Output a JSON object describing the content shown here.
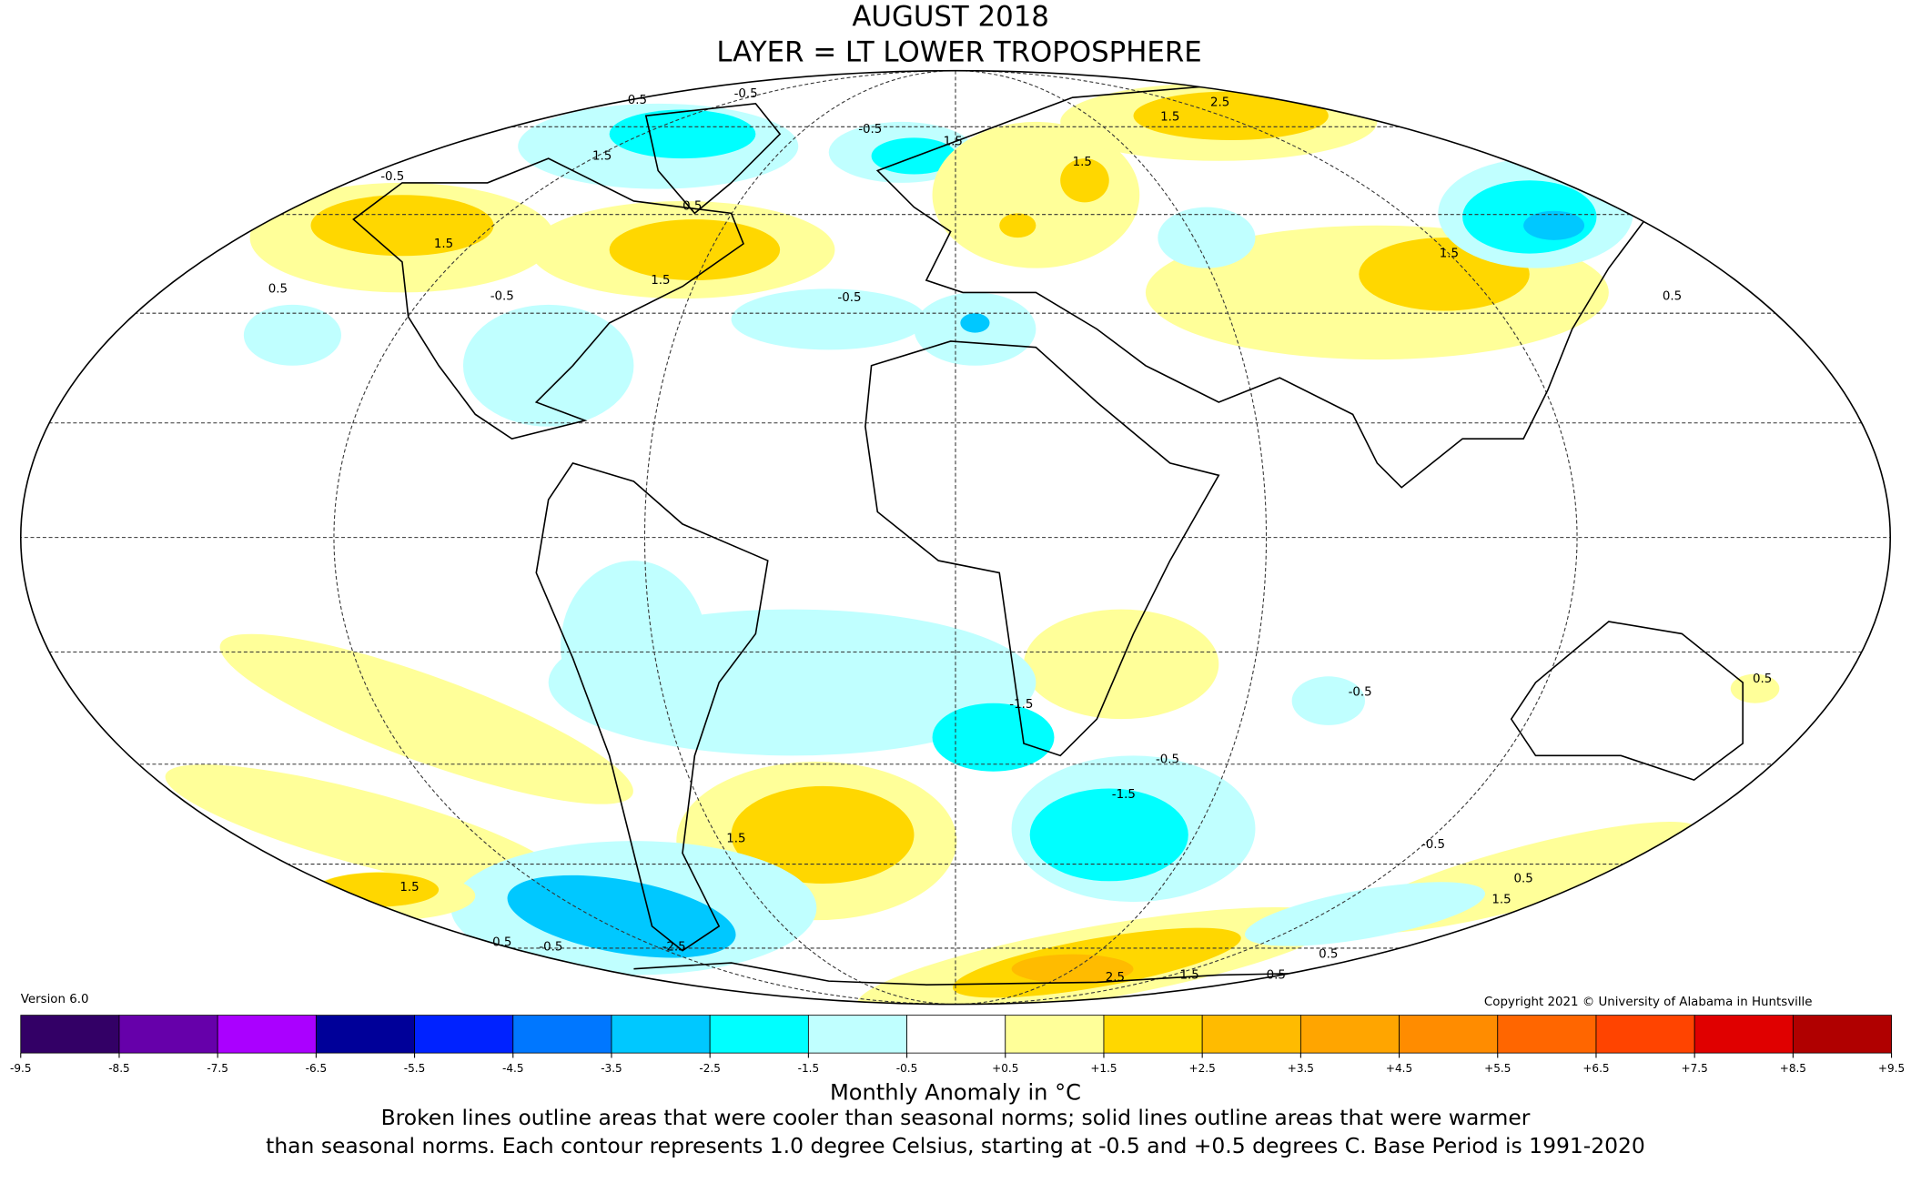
{
  "header": {
    "title": "AUGUST 2018",
    "subtitle": "LAYER = LT LOWER TROPOSPHERE"
  },
  "map": {
    "contour_labels": [
      0.5,
      -0.5,
      1.5,
      -0.5,
      1.5,
      -0.5,
      1.5,
      0.5,
      1.5,
      0.5,
      -0.5,
      -0.5,
      2.5,
      1.5,
      1.5,
      1.5,
      0.5,
      -1.5,
      -0.5,
      -1.5,
      1.5,
      -0.5,
      0.5,
      1.5,
      0.5,
      -0.5,
      -2.5,
      2.5,
      1.5,
      0.5,
      0.5,
      -0.5,
      0.5,
      1.5
    ]
  },
  "colorbar": {
    "label": "Monthly Anomaly in °C",
    "ticks": [
      -9.5,
      -8.5,
      -7.5,
      -6.5,
      -5.5,
      -4.5,
      -3.5,
      -2.5,
      -1.5,
      -0.5,
      {
        "value": 0.5,
        "label": "+0.5"
      },
      {
        "value": 1.5,
        "label": "+1.5"
      },
      {
        "value": 2.5,
        "label": "+2.5"
      },
      {
        "value": 3.5,
        "label": "+3.5"
      },
      {
        "value": 4.5,
        "label": "+4.5"
      },
      {
        "value": 5.5,
        "label": "+5.5"
      },
      {
        "value": 6.5,
        "label": "+6.5"
      },
      {
        "value": 7.5,
        "label": "+7.5"
      },
      {
        "value": 8.5,
        "label": "+8.5"
      },
      {
        "value": 9.5,
        "label": "+9.5"
      }
    ],
    "colors": [
      "#330066",
      "#6600aa",
      "#aa00ff",
      "#000099",
      "#0022ff",
      "#0077ff",
      "#00c8ff",
      "#00ffff",
      "#c0ffff",
      "#ffffff",
      "#ffff99",
      "#ffd700",
      "#ffbb00",
      "#ffa500",
      "#ff8c00",
      "#ff6600",
      "#ff4400",
      "#e00000",
      "#b00000"
    ]
  },
  "footer": {
    "version": "Version 6.0",
    "copyright": "Copyright 2021 © University of Alabama in Huntsville",
    "caption": [
      "Broken lines outline areas that were cooler than seasonal norms; solid lines outline areas that were warmer",
      "than seasonal norms. Each contour represents 1.0 degree Celsius, starting at -0.5 and +0.5 degrees C. Base Period is 1991-2020"
    ]
  }
}
